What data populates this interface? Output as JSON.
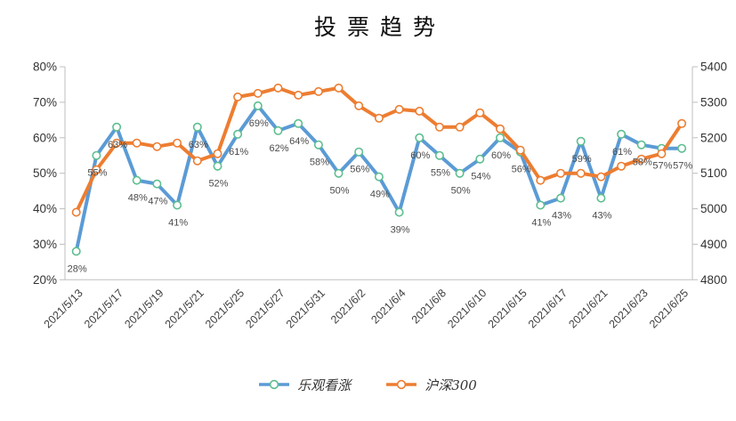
{
  "chart_data": {
    "type": "line",
    "title": "投票趋势",
    "grid": false,
    "legend_position": "bottom",
    "num_points": 31,
    "x_tick_every": 2,
    "x_tick_labels": [
      "2021/5/13",
      "2021/5/17",
      "2021/5/19",
      "2021/5/21",
      "2021/5/25",
      "2021/5/27",
      "2021/5/31",
      "2021/6/2",
      "2021/6/4",
      "2021/6/8",
      "2021/6/10",
      "2021/6/15",
      "2021/6/17",
      "2021/6/21",
      "2021/6/23",
      "2021/6/25"
    ],
    "left_axis": {
      "min": 20,
      "max": 80,
      "step": 10,
      "suffix": "%",
      "tick_labels": [
        "20%",
        "30%",
        "40%",
        "50%",
        "60%",
        "70%",
        "80%"
      ]
    },
    "right_axis": {
      "min": 4800,
      "max": 5400,
      "step": 100,
      "tick_labels": [
        "4800",
        "4900",
        "5000",
        "5100",
        "5200",
        "5300",
        "5400"
      ]
    },
    "series": [
      {
        "name": "乐观看涨",
        "axis": "left",
        "unit": "%",
        "color": "#5B9BD5",
        "marker_stroke": "#5CBE8F",
        "labels_shown": true,
        "values": [
          28,
          55,
          63,
          48,
          47,
          41,
          63,
          52,
          61,
          69,
          62,
          64,
          58,
          50,
          56,
          49,
          39,
          60,
          55,
          50,
          54,
          60,
          56,
          41,
          43,
          59,
          43,
          61,
          58,
          57,
          57
        ]
      },
      {
        "name": "沪深300",
        "axis": "right",
        "unit": "",
        "color": "#ED7D31",
        "marker_stroke": "#ED7D31",
        "labels_shown": false,
        "values": [
          4990,
          5110,
          5185,
          5185,
          5175,
          5185,
          5135,
          5155,
          5315,
          5325,
          5340,
          5320,
          5330,
          5340,
          5290,
          5255,
          5280,
          5275,
          5230,
          5230,
          5270,
          5225,
          5165,
          5080,
          5100,
          5100,
          5090,
          5120,
          5140,
          5155,
          5240
        ]
      }
    ]
  },
  "colors": {
    "axis_line": "#BFBFBF",
    "tick_text": "#333333",
    "x_label_text": "#404040",
    "data_label_text": "#4a4a4a",
    "background": "#ffffff"
  }
}
